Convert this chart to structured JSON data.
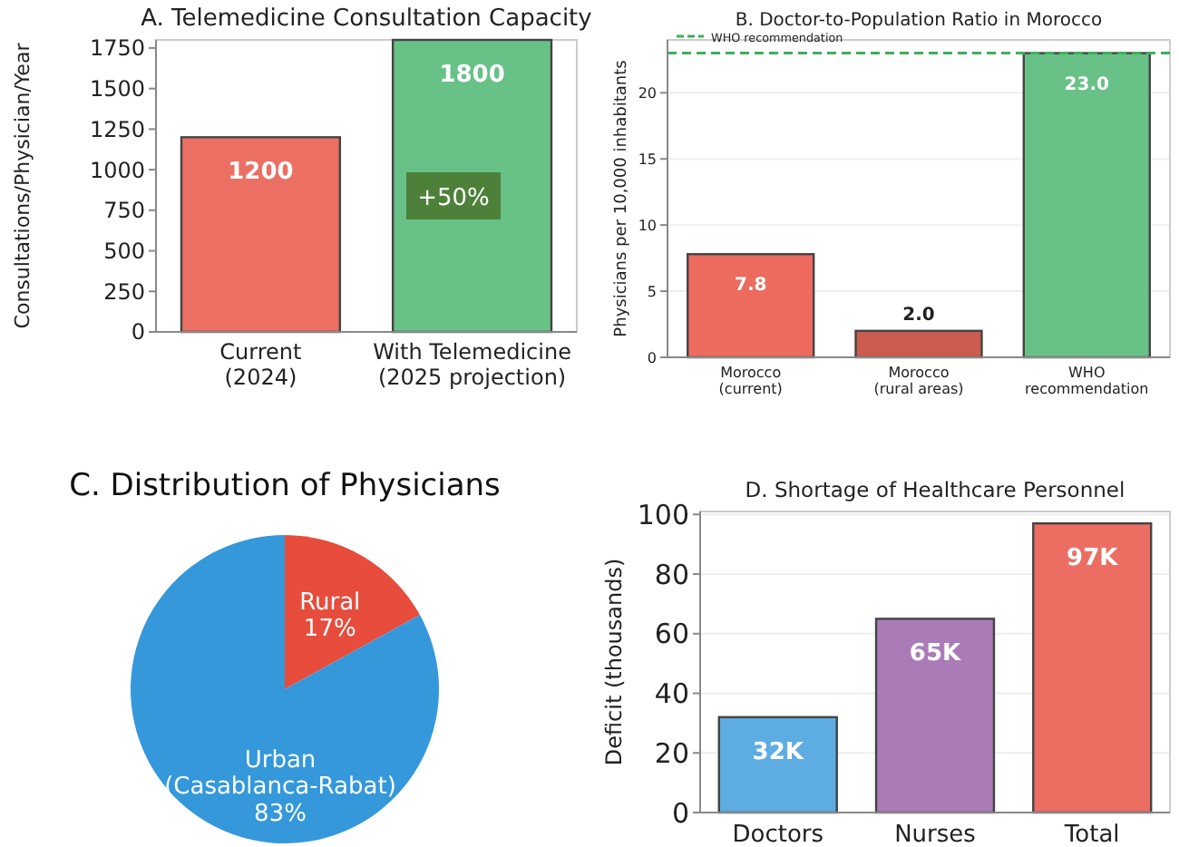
{
  "chart_data": [
    {
      "type": "bar",
      "title": "A. Telemedicine Consultation Capacity",
      "ylabel": "Consultations/Physician/Year",
      "categories": [
        "Current\n(2024)",
        "With Telemedicine\n(2025 projection)"
      ],
      "values": [
        1200,
        1800
      ],
      "colors": [
        "#ec6f64",
        "#68c187"
      ],
      "data_labels": true,
      "ylim": [
        0,
        1800
      ],
      "yticks": [
        0,
        250,
        500,
        750,
        1000,
        1250,
        1500,
        1750
      ],
      "annotations": [
        "+50%"
      ]
    },
    {
      "type": "bar",
      "title": "B. Doctor-to-Population Ratio in Morocco",
      "ylabel": "Physicians per 10,000 inhabitants",
      "categories": [
        "Morocco\n(current)",
        "Morocco\n(rural areas)",
        "WHO\nrecommendation"
      ],
      "values": [
        7.8,
        2.0,
        23.0
      ],
      "value_labels": [
        "7.8",
        "2.0",
        "23.0"
      ],
      "colors": [
        "#ec6a5e",
        "#cd5c50",
        "#68c187"
      ],
      "ylim": [
        0,
        24
      ],
      "yticks": [
        0,
        5,
        10,
        15,
        20
      ],
      "grid": "y",
      "ref_lines": [
        {
          "axis": "y",
          "value": 23,
          "label": "WHO recommendation",
          "color": "#3cb05a",
          "line_style": "dashed"
        }
      ]
    },
    {
      "type": "pie",
      "title": "C. Distribution of Physicians",
      "categories": [
        "Rural",
        "Urban\n(Casablanca-Rabat)"
      ],
      "values": [
        17,
        83
      ],
      "value_labels": [
        "17%",
        "83%"
      ],
      "colors": [
        "#e74c3c",
        "#3498db"
      ]
    },
    {
      "type": "bar",
      "title": "D. Shortage of Healthcare Personnel",
      "ylabel": "Deficit (thousands)",
      "categories": [
        "Doctors",
        "Nurses",
        "Total"
      ],
      "values": [
        32,
        65,
        97
      ],
      "value_labels": [
        "32K",
        "65K",
        "97K"
      ],
      "colors": [
        "#5dade2",
        "#ab7bb8",
        "#ec6e63"
      ],
      "ylim": [
        0,
        101
      ],
      "yticks": [
        0,
        20,
        40,
        60,
        80,
        100
      ],
      "grid": "y"
    }
  ]
}
